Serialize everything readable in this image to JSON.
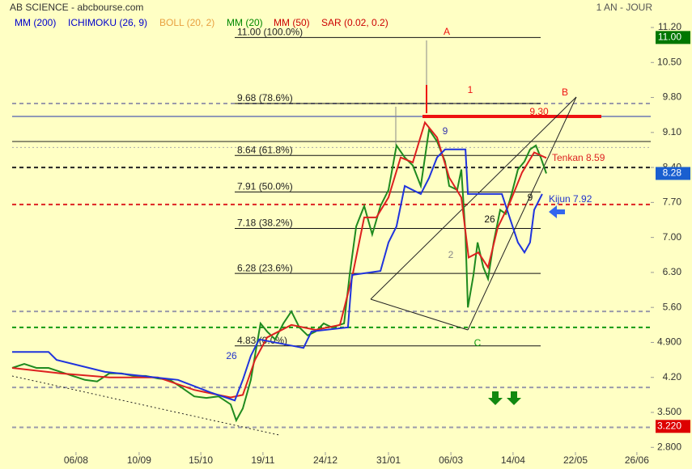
{
  "chart_data": {
    "type": "line",
    "title": "AB SCIENCE - abcbourse.com",
    "period": "1 AN - JOUR",
    "legend": [
      {
        "name": "MM (200)",
        "color": "#0000cc"
      },
      {
        "name": "ICHIMOKU (26, 9)",
        "color": "#0000cc"
      },
      {
        "name": "BOLL (20, 2)",
        "color": "#e8a040"
      },
      {
        "name": "MM (20)",
        "color": "#008800"
      },
      {
        "name": "MM (50)",
        "color": "#cc0000"
      },
      {
        "name": "SAR (0.02, 0.2)",
        "color": "#cc0000"
      }
    ],
    "xlim": [
      0,
      263
    ],
    "xticks": [
      {
        "value": 26.3,
        "label": "06/08"
      },
      {
        "value": 52.3,
        "label": "10/09"
      },
      {
        "value": 77.7,
        "label": "15/10"
      },
      {
        "value": 103.3,
        "label": "19/11"
      },
      {
        "value": 129,
        "label": "24/12"
      },
      {
        "value": 155,
        "label": "31/01"
      },
      {
        "value": 180.7,
        "label": "06/03"
      },
      {
        "value": 206.3,
        "label": "14/04"
      },
      {
        "value": 232,
        "label": "22/05"
      },
      {
        "value": 257.3,
        "label": "26/06"
      }
    ],
    "ylim": [
      2.4,
      11.75
    ],
    "yticks": [
      {
        "value": 11.2,
        "label": "11.20"
      },
      {
        "value": 10.5,
        "label": "10.50"
      },
      {
        "value": 9.8,
        "label": "9.80"
      },
      {
        "value": 9.1,
        "label": "9.10"
      },
      {
        "value": 8.4,
        "label": "8.40"
      },
      {
        "value": 7.7,
        "label": "7.70"
      },
      {
        "value": 7,
        "label": "7.00"
      },
      {
        "value": 6.3,
        "label": "6.30"
      },
      {
        "value": 5.6,
        "label": "5.60"
      },
      {
        "value": 4.9,
        "label": "4.900"
      },
      {
        "value": 4.2,
        "label": "4.20"
      },
      {
        "value": 3.5,
        "label": "3.500"
      },
      {
        "value": 2.8,
        "label": "2.800"
      }
    ],
    "price_tags": [
      {
        "value": 11,
        "label": "11.00",
        "color": "#007700"
      },
      {
        "value": 8.28,
        "label": "8.28",
        "color": "#1a5fd0"
      },
      {
        "value": 3.22,
        "label": "3.220",
        "color": "#dd0000"
      }
    ],
    "levels": [
      {
        "value": 9.68,
        "color": "#9a9aaa",
        "style": "dash"
      },
      {
        "value": 9.42,
        "color": "#2233aa",
        "style": "solid"
      },
      {
        "value": 8.92,
        "color": "#222222",
        "style": "solid"
      },
      {
        "value": 8.8,
        "color": "#aaaaaa",
        "style": "dot"
      },
      {
        "value": 8.4,
        "color": "#222222",
        "style": "dash"
      },
      {
        "value": 7.66,
        "color": "#dd2222",
        "style": "dash"
      },
      {
        "value": 5.52,
        "color": "#9a9aaa",
        "style": "dash"
      },
      {
        "value": 5.2,
        "color": "#119911",
        "style": "dash"
      },
      {
        "value": 4,
        "color": "#9a9aaa",
        "style": "dash"
      },
      {
        "value": 3.2,
        "color": "#9a9aaa",
        "style": "dash"
      },
      {
        "value": 9.42,
        "color": "#ee1111",
        "style": "thick"
      }
    ],
    "fib_levels": [
      {
        "value": 11,
        "label": "11.00  (100.0%)"
      },
      {
        "value": 9.68,
        "label": "9.68  (78.6%)"
      },
      {
        "value": 8.64,
        "label": "8.64  (61.8%)"
      },
      {
        "value": 7.91,
        "label": "7.91  (50.0%)"
      },
      {
        "value": 7.18,
        "label": "7.18  (38.2%)"
      },
      {
        "value": 6.28,
        "label": "6.28  (23.6%)"
      },
      {
        "value": 4.83,
        "label": "4.83  (0.0%)"
      }
    ],
    "series": [
      {
        "color": "#1f8a1f",
        "x": [
          0,
          5,
          10,
          15,
          20,
          25,
          30,
          35,
          40,
          45,
          50,
          55,
          60,
          65,
          70,
          75,
          80,
          85,
          90,
          92.3,
          95,
          98.3,
          100,
          102.3,
          105,
          108.3,
          111.7,
          115,
          118.3,
          121.7,
          125,
          128.3,
          131.7,
          136.7,
          139,
          141.7,
          145,
          148.3,
          151.7,
          155,
          158.3,
          161.7,
          165,
          168.3,
          171.7,
          175,
          178.3,
          180,
          183.3,
          185,
          186.7,
          187.7,
          190,
          191.7,
          194,
          196,
          198.3,
          201,
          203.3,
          205.7,
          208.3,
          211,
          213.3,
          215.7,
          217.7,
          220
        ],
        "values": [
          4.39,
          4.47,
          4.39,
          4.39,
          4.31,
          4.23,
          4.15,
          4.12,
          4.28,
          4.28,
          4.23,
          4.23,
          4.18,
          4.15,
          3.99,
          3.82,
          3.79,
          3.82,
          3.66,
          3.34,
          3.58,
          4.15,
          4.63,
          5.28,
          5.12,
          4.96,
          5.28,
          5.52,
          5.2,
          5.04,
          5.12,
          5.28,
          5.2,
          5.28,
          6.25,
          7.22,
          7.63,
          7.06,
          7.63,
          7.95,
          8.84,
          8.6,
          8.44,
          8.03,
          9.16,
          8.92,
          8.52,
          8.03,
          7.95,
          8.36,
          7.06,
          5.6,
          6.25,
          6.9,
          6.41,
          6.17,
          6.9,
          7.55,
          7.47,
          7.87,
          8.36,
          8.52,
          8.76,
          8.84,
          8.6,
          8.28
        ]
      },
      {
        "color": "#dd2020",
        "x": [
          0,
          20,
          40,
          60,
          75,
          90,
          95,
          100,
          105,
          115,
          125,
          135,
          140,
          145,
          150,
          155,
          160,
          165,
          170,
          175,
          180,
          185,
          188,
          192,
          196,
          200,
          205,
          210,
          215,
          220
        ],
        "values": [
          4.39,
          4.28,
          4.2,
          4.2,
          3.95,
          3.8,
          3.85,
          4.55,
          5,
          5.25,
          5.15,
          5.25,
          6.2,
          7.4,
          7.4,
          7.8,
          8.6,
          8.5,
          9.3,
          9,
          8.2,
          7.8,
          6.6,
          6.7,
          6.4,
          7.2,
          7.7,
          8.3,
          8.7,
          8.59
        ]
      },
      {
        "color": "#1f33dd",
        "x": [
          0,
          15,
          18.3,
          38.3,
          68.3,
          81.7,
          91.7,
          95,
          98.3,
          101.7,
          120,
          121.7,
          123.3,
          138.3,
          140,
          151.7,
          155,
          158.3,
          161.7,
          168.3,
          171.7,
          175,
          178.3,
          186.7,
          187.7,
          201.7,
          208.3,
          211,
          213.3,
          215,
          218.3
        ],
        "values": [
          4.71,
          4.71,
          4.55,
          4.31,
          4.15,
          3.9,
          3.74,
          4.15,
          4.63,
          4.96,
          4.79,
          4.96,
          5.12,
          5.2,
          6.25,
          6.33,
          6.9,
          7.22,
          8.03,
          7.87,
          8.19,
          8.6,
          8.76,
          8.76,
          7.87,
          7.87,
          6.9,
          6.7,
          6.9,
          7.55,
          7.87
        ]
      }
    ],
    "annotations": [
      "A",
      "1",
      "B",
      "9.30",
      "9",
      "2",
      "26",
      "9",
      "C",
      "26",
      "Tenkan 8.59",
      "Kijun 7.92"
    ]
  }
}
